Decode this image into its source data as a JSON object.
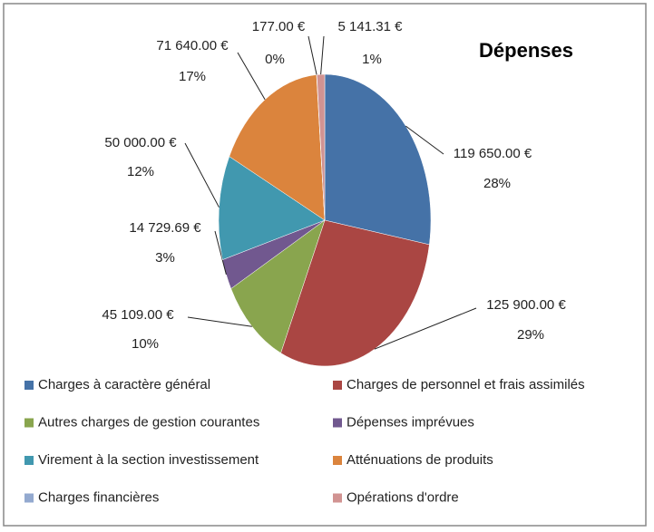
{
  "chart_data": {
    "type": "pie",
    "title": "Dépenses",
    "categories": [
      "Charges à caractère général",
      "Charges de personnel et frais assimilés",
      "Autres charges de gestion courantes",
      "Dépenses imprévues",
      "Virement à la section investissement",
      "Atténuations de produits",
      "Charges financières",
      "Opérations d'ordre"
    ],
    "values": [
      119650,
      125900,
      45109,
      14729.69,
      50000,
      71640,
      177,
      5141.31
    ],
    "value_labels": [
      "119 650.00 €",
      "125 900.00 €",
      "45 109.00 €",
      "14 729.69 €",
      "50 000.00 €",
      "71 640.00 €",
      "177.00 €",
      "5 141.31 €"
    ],
    "percentages": [
      28,
      29,
      10,
      3,
      12,
      17,
      0,
      1
    ],
    "percentage_labels": [
      "28%",
      "29%",
      "10%",
      "3%",
      "12%",
      "17%",
      "0%",
      "1%"
    ],
    "colors": [
      "#4572A7",
      "#AA4643",
      "#89A54E",
      "#71588F",
      "#4198AF",
      "#DB843D",
      "#93A9CF",
      "#D19392"
    ],
    "legend": "bottom"
  }
}
